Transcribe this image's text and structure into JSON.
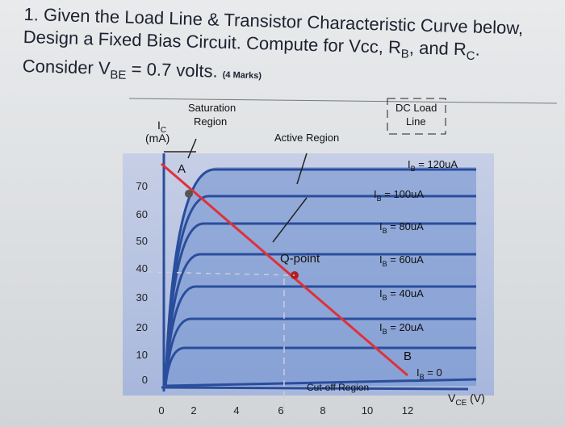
{
  "question": {
    "parts": [
      "1. Given the Load Line & Transistor Characteristic Curve below, Design a Fixed Bias Circuit. Compute for Vcc, R",
      "B",
      ", and R",
      "C",
      ". Consider V",
      "BE",
      " = 0.7 volts."
    ],
    "marks": "(4 Marks)"
  },
  "diagram": {
    "saturation_label": [
      "Saturation",
      "Region"
    ],
    "ic_label": [
      "I",
      "C",
      "(mA)"
    ],
    "active_label": "Active Region",
    "load_line_label": [
      "DC Load",
      "Line"
    ],
    "point_a": "A",
    "q_point": "Q-point",
    "point_b": "B",
    "cutoff_label": "Cut-off Region",
    "vce_label": [
      "V",
      "CE",
      " (V)"
    ],
    "curve_labels": [
      [
        "I",
        "B",
        " = 120uA"
      ],
      [
        "I",
        "B",
        " = 100uA"
      ],
      [
        "I",
        "B",
        " = 80uA"
      ],
      [
        "I",
        "B",
        " = 60uA"
      ],
      [
        "I",
        "B",
        " = 40uA"
      ],
      [
        "I",
        "B",
        " = 20uA"
      ],
      [
        "I",
        "B",
        " = 0"
      ]
    ],
    "y_ticks": [
      70,
      60,
      50,
      40,
      30,
      20,
      10,
      0
    ],
    "x_ticks": [
      0,
      2,
      4,
      6,
      8,
      10,
      12
    ]
  }
}
